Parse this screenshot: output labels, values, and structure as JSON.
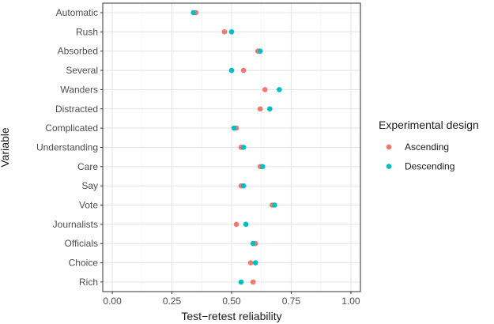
{
  "chart_data": {
    "type": "scatter",
    "xlabel": "Test−retest reliability",
    "ylabel": "Variable",
    "xlim": [
      -0.04,
      1.04
    ],
    "xticks": [
      0.0,
      0.25,
      0.5,
      0.75,
      1.0
    ],
    "xtick_labels": [
      "0.00",
      "0.25",
      "0.50",
      "0.75",
      "1.00"
    ],
    "grid": true,
    "legend": {
      "title": "Experimental design",
      "placement": "right"
    },
    "categories": [
      "Automatic",
      "Rush",
      "Absorbed",
      "Several",
      "Wanders",
      "Distracted",
      "Complicated",
      "Understanding",
      "Care",
      "Say",
      "Vote",
      "Journalists",
      "Officials",
      "Choice",
      "Rich"
    ],
    "series": [
      {
        "name": "Ascending",
        "color": "#F8766D",
        "values": [
          0.35,
          0.47,
          0.61,
          0.55,
          0.64,
          0.62,
          0.52,
          0.54,
          0.62,
          0.54,
          0.67,
          0.52,
          0.6,
          0.58,
          0.59
        ]
      },
      {
        "name": "Descending",
        "color": "#00BFC4",
        "values": [
          0.34,
          0.5,
          0.62,
          0.5,
          0.7,
          0.66,
          0.51,
          0.55,
          0.63,
          0.55,
          0.68,
          0.56,
          0.59,
          0.6,
          0.54
        ]
      }
    ]
  }
}
